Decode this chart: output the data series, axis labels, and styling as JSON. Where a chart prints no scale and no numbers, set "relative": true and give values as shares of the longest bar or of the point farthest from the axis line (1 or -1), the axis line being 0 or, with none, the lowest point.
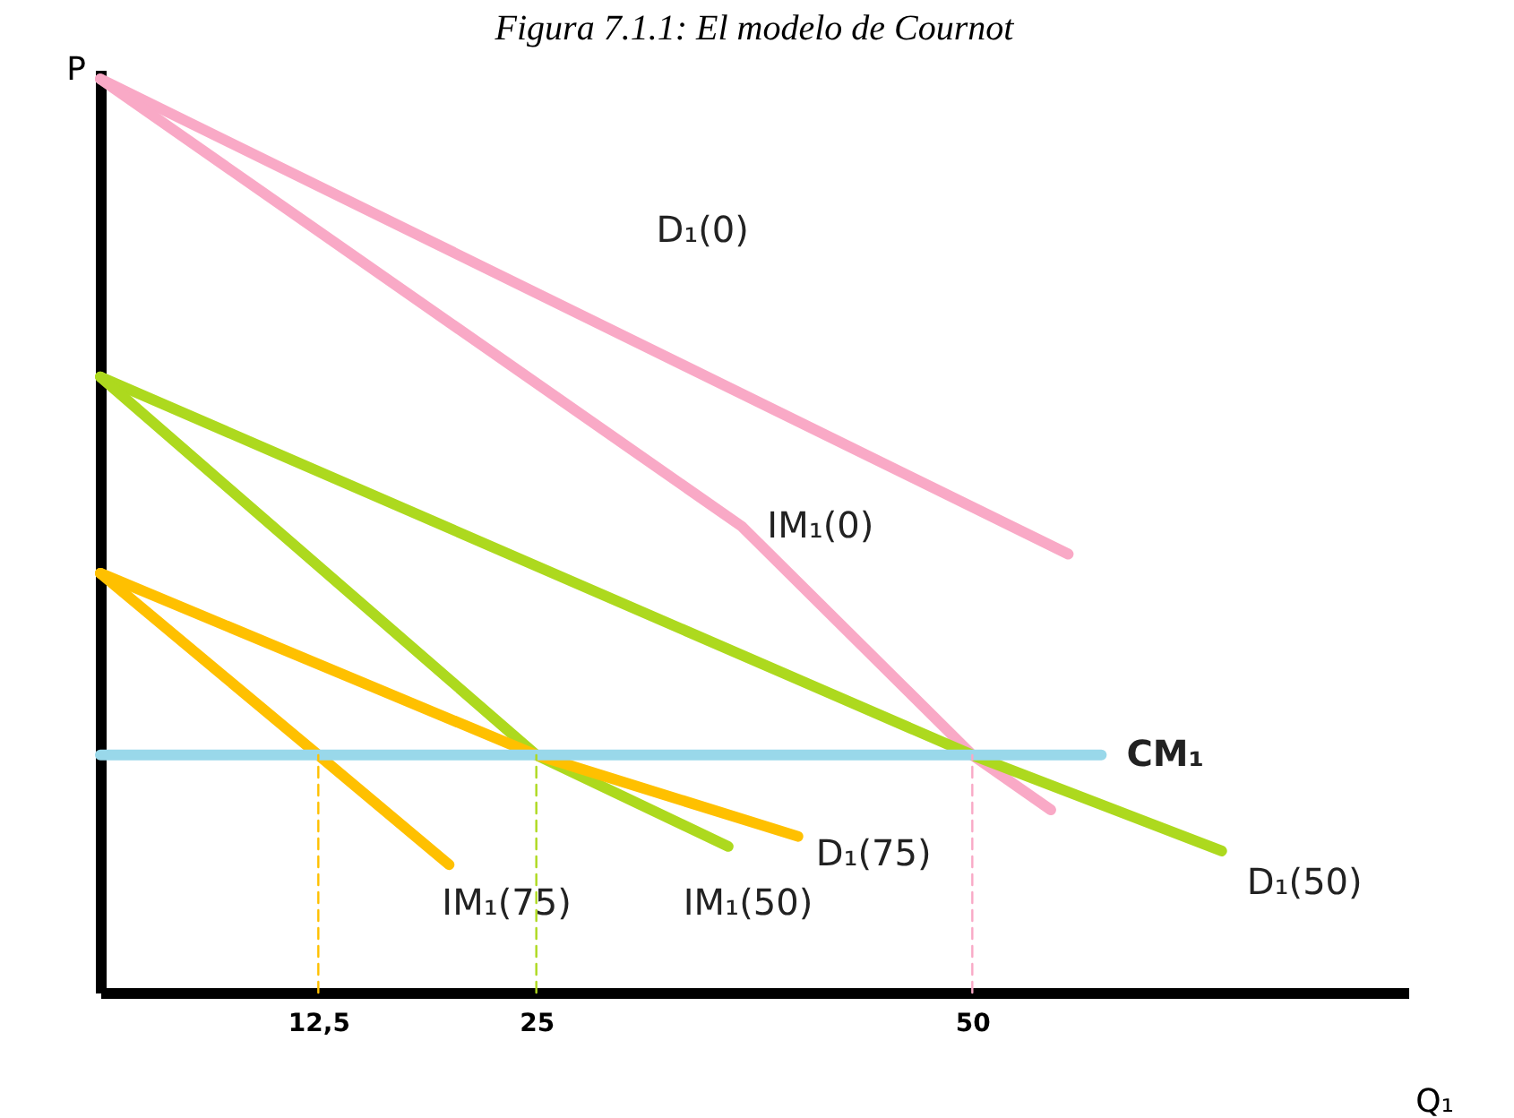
{
  "chart_data": {
    "type": "line",
    "title": "Figura 7.1.1: El modelo de Cournot",
    "xlabel": "Q₁",
    "ylabel": "P",
    "relative": true,
    "tick_labels": "x",
    "xlim": [
      0,
      75
    ],
    "xticks": [
      {
        "value": 12.5,
        "label": "12,5"
      },
      25,
      50
    ],
    "grid": false,
    "series": [
      {
        "name": "D₁(0)",
        "color": "#f9a9c6",
        "x": [
          0,
          55.5
        ],
        "values": [
          1,
          0.48
        ]
      },
      {
        "name": "IM₁(0)",
        "color": "#f9a9c6",
        "x": [
          0,
          36.8,
          50,
          54.5
        ],
        "values": [
          1,
          0.51,
          0.26,
          0.2
        ]
      },
      {
        "name": "D₁(50)",
        "color": "#add91e",
        "x": [
          0,
          50,
          64.3
        ],
        "values": [
          0.674,
          0.26,
          0.155
        ]
      },
      {
        "name": "IM₁(50)",
        "color": "#add91e",
        "x": [
          0,
          25,
          36
        ],
        "values": [
          0.674,
          0.26,
          0.16
        ]
      },
      {
        "name": "D₁(75)",
        "color": "#ffc000",
        "x": [
          0,
          25,
          40
        ],
        "values": [
          0.459,
          0.26,
          0.171
        ]
      },
      {
        "name": "IM₁(75)",
        "color": "#ffc000",
        "x": [
          0,
          12.5,
          20
        ],
        "values": [
          0.459,
          0.26,
          0.14
        ]
      },
      {
        "name": "CM₁",
        "color": "#99d8ea",
        "x": [
          0,
          57.4
        ],
        "values": [
          0.26,
          0.26
        ]
      },
      {
        "color": "#ffc000",
        "line_style": "dashed",
        "x": [
          12.5,
          12.5
        ],
        "values": [
          0,
          0.26
        ]
      },
      {
        "color": "#add91e",
        "line_style": "dashed",
        "x": [
          25,
          25
        ],
        "values": [
          0,
          0.26
        ]
      },
      {
        "color": "#f9a9c6",
        "line_style": "dashed",
        "x": [
          50,
          50
        ],
        "values": [
          0,
          0.26
        ]
      }
    ]
  }
}
